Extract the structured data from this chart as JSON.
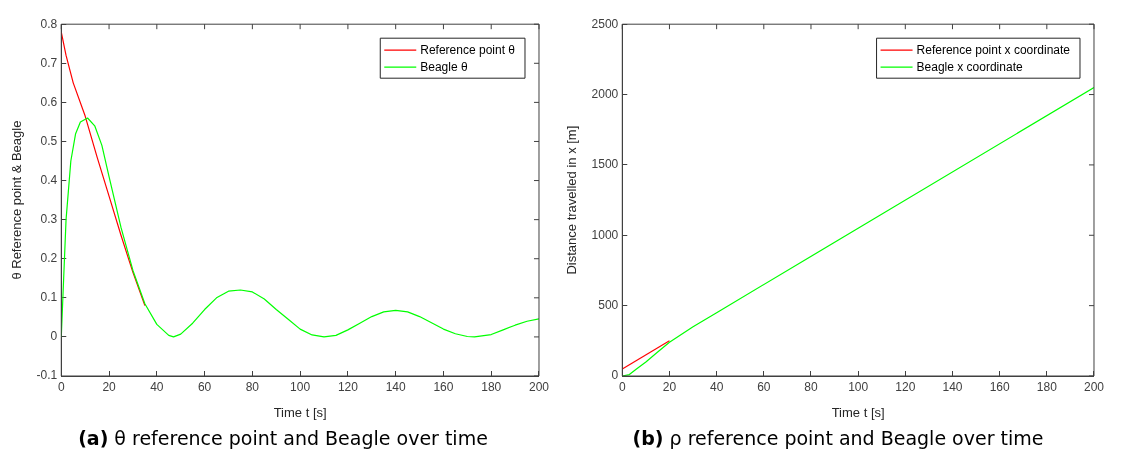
{
  "chart_data": [
    {
      "type": "line",
      "xlabel": "Time t [s]",
      "ylabel": "θ Reference point & Beagle",
      "xlim": [
        0,
        200
      ],
      "xticks": [
        0,
        20,
        40,
        60,
        80,
        100,
        120,
        140,
        160,
        180,
        200
      ],
      "ylim": [
        -0.1,
        0.8
      ],
      "yticks": [
        -0.1,
        0,
        0.1,
        0.2,
        0.3,
        0.4,
        0.5,
        0.6,
        0.7,
        0.8
      ],
      "grid": false,
      "legend": "top right",
      "annotations": [
        "(a) θ reference point and Beagle over time"
      ],
      "series": [
        {
          "name": "Reference point θ",
          "color": "#ff0000",
          "x": [
            0,
            2,
            5,
            10,
            15,
            20,
            25,
            30,
            35
          ],
          "values": [
            0.78,
            0.72,
            0.65,
            0.565,
            0.46,
            0.36,
            0.26,
            0.165,
            0.08
          ]
        },
        {
          "name": "Beagle θ",
          "color": "#00ff00",
          "x": [
            0,
            1,
            2,
            4,
            6,
            8,
            11,
            14,
            17,
            20,
            25,
            30,
            35,
            40,
            45,
            47,
            50,
            55,
            60,
            65,
            70,
            75,
            80,
            85,
            90,
            95,
            100,
            105,
            110,
            115,
            120,
            125,
            130,
            135,
            140,
            145,
            150,
            155,
            160,
            165,
            170,
            173,
            180,
            185,
            190,
            195,
            200
          ],
          "values": [
            0,
            0.15,
            0.3,
            0.45,
            0.52,
            0.55,
            0.56,
            0.54,
            0.49,
            0.41,
            0.28,
            0.17,
            0.085,
            0.032,
            0.004,
            0,
            0.007,
            0.035,
            0.07,
            0.1,
            0.117,
            0.12,
            0.115,
            0.097,
            0.07,
            0.045,
            0.02,
            0.005,
            0,
            0.004,
            0.018,
            0.035,
            0.052,
            0.064,
            0.068,
            0.064,
            0.052,
            0.036,
            0.02,
            0.008,
            0.001,
            0,
            0.006,
            0.018,
            0.03,
            0.04,
            0.046
          ]
        }
      ]
    },
    {
      "type": "line",
      "xlabel": "Time t [s]",
      "ylabel": "Distance travelled in x [m]",
      "xlim": [
        0,
        200
      ],
      "xticks": [
        0,
        20,
        40,
        60,
        80,
        100,
        120,
        140,
        160,
        180,
        200
      ],
      "ylim": [
        0,
        2500
      ],
      "yticks": [
        0,
        500,
        1000,
        1500,
        2000,
        2500
      ],
      "grid": false,
      "legend": "top right",
      "annotations": [
        "(b) ρ reference point and Beagle over time"
      ],
      "series": [
        {
          "name": "Reference point x coordinate",
          "color": "#ff0000",
          "x": [
            0,
            20
          ],
          "values": [
            50,
            250
          ]
        },
        {
          "name": "Beagle x coordinate",
          "color": "#00ff00",
          "x": [
            0,
            3,
            6,
            10,
            15,
            20,
            30,
            40,
            200
          ],
          "values": [
            0,
            10,
            50,
            100,
            170,
            240,
            350,
            450,
            2050
          ]
        }
      ]
    }
  ]
}
